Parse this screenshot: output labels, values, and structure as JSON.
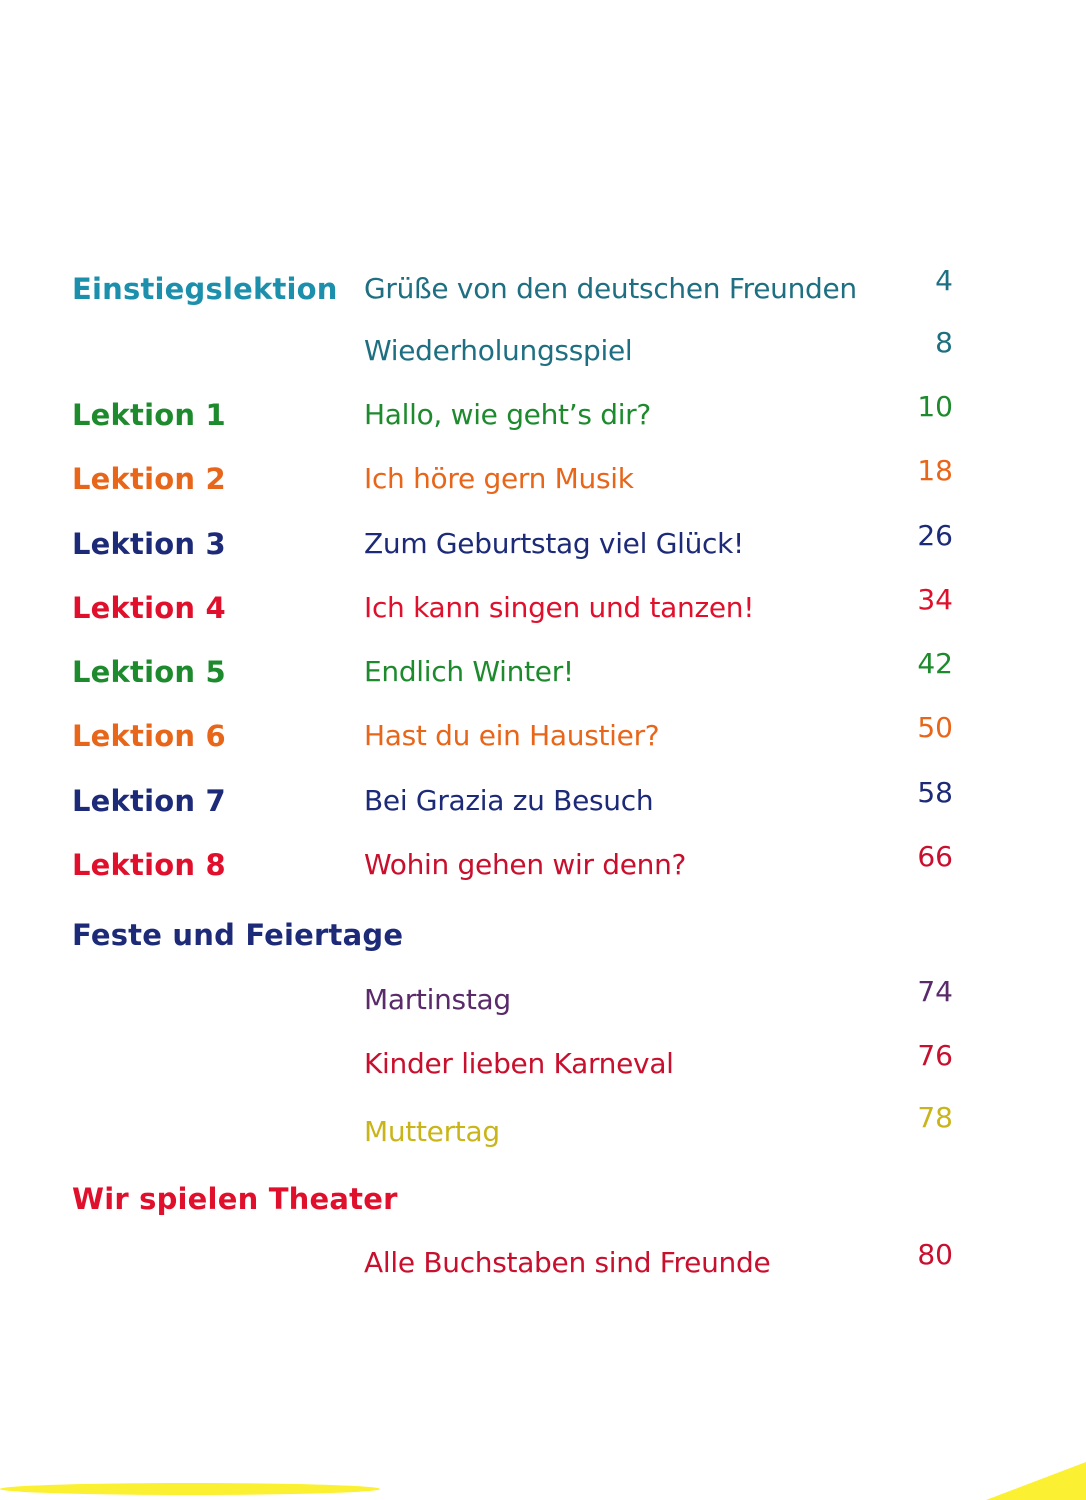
{
  "toc": {
    "rows": [
      {
        "label": "Einstiegslektion",
        "title": "Grüße von den deutschen Freunden",
        "page": "4"
      },
      {
        "label": "",
        "title": "Wiederholungsspiel",
        "page": "8"
      },
      {
        "label": "Lektion 1",
        "title": "Hallo, wie geht’s dir?",
        "page": "10"
      },
      {
        "label": "Lektion 2",
        "title": "Ich höre gern Musik",
        "page": "18"
      },
      {
        "label": "Lektion 3",
        "title": "Zum Geburtstag viel Glück!",
        "page": "26"
      },
      {
        "label": "Lektion 4",
        "title": "Ich kann singen und tanzen!",
        "page": "34"
      },
      {
        "label": "Lektion 5",
        "title": "Endlich Winter!",
        "page": "42"
      },
      {
        "label": "Lektion 6",
        "title": "Hast du ein Haustier?",
        "page": "50"
      },
      {
        "label": "Lektion 7",
        "title": "Bei Grazia zu Besuch",
        "page": "58"
      },
      {
        "label": "Lektion 8",
        "title": "Wohin gehen wir denn?",
        "page": "66"
      }
    ],
    "feste": {
      "heading": "Feste und Feiertage",
      "items": [
        {
          "title": "Martinstag",
          "page": "74"
        },
        {
          "title": "Kinder lieben Karneval",
          "page": "76"
        },
        {
          "title": "Muttertag",
          "page": "78"
        }
      ]
    },
    "theater": {
      "heading": "Wir spielen Theater",
      "items": [
        {
          "title": "Alle Buchstaben sind Freunde",
          "page": "80"
        }
      ]
    }
  },
  "colors": {
    "teal": "#1b8fab",
    "green": "#1e8a2e",
    "orange": "#e8661a",
    "navy": "#1c2a78",
    "red": "#e0102c",
    "purple": "#5a2a6a",
    "yellow": "#c9b51a"
  }
}
